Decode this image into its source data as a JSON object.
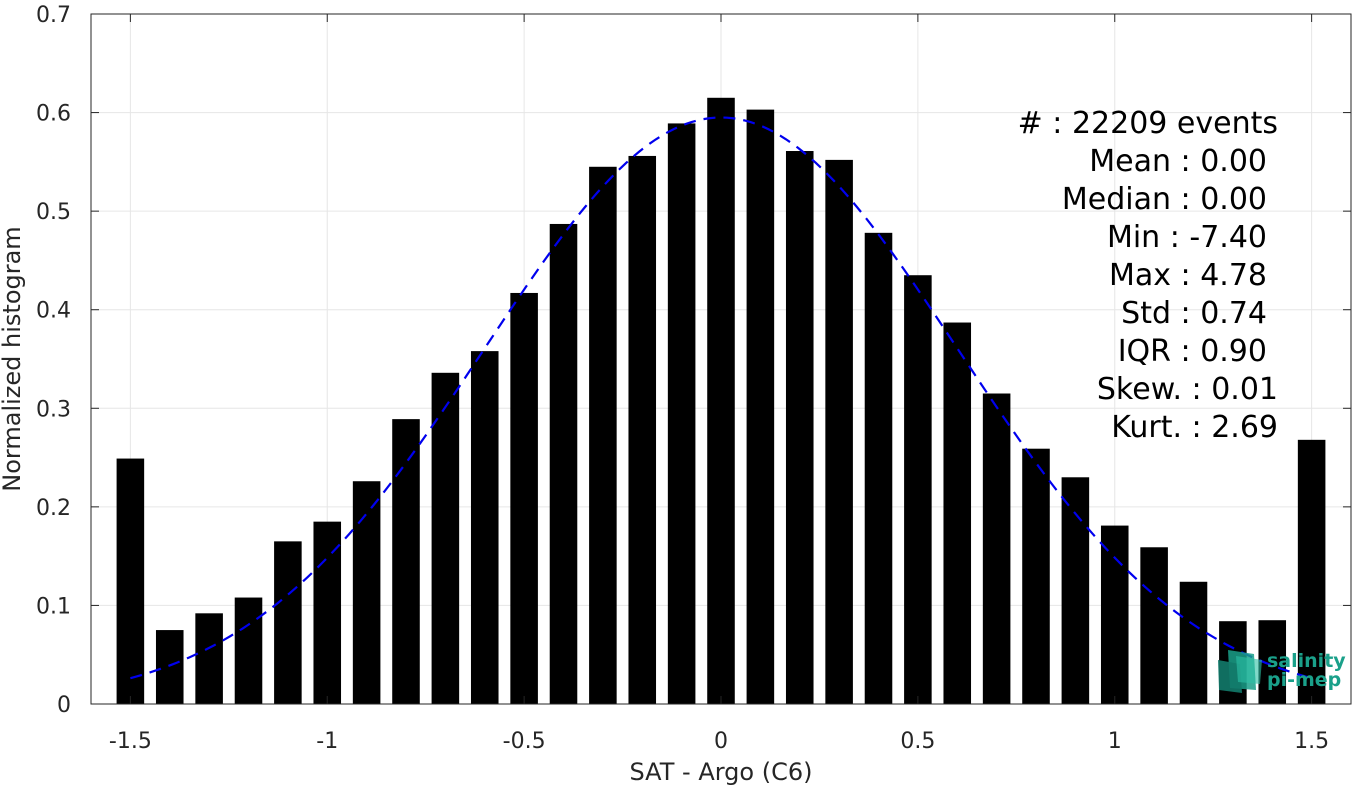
{
  "chart_data": {
    "type": "bar",
    "xlabel": "SAT - Argo (C6)",
    "ylabel": "Normalized histogram",
    "xlim": [
      -1.6,
      1.6
    ],
    "ylim": [
      0,
      0.7
    ],
    "xticks": [
      -1.5,
      -1,
      -0.5,
      0,
      0.5,
      1,
      1.5
    ],
    "xtick_labels": [
      "-1.5",
      "-1",
      "-0.5",
      "0",
      "0.5",
      "1",
      "1.5"
    ],
    "yticks": [
      0,
      0.1,
      0.2,
      0.3,
      0.4,
      0.5,
      0.6,
      0.7
    ],
    "ytick_labels": [
      "0",
      "0.1",
      "0.2",
      "0.3",
      "0.4",
      "0.5",
      "0.6",
      "0.7"
    ],
    "grid": true,
    "bar_color": "#000000",
    "curve_color": "#0000ee",
    "bin_width": 0.1,
    "bar_width_fraction": 0.7,
    "x": [
      -1.5,
      -1.4,
      -1.3,
      -1.2,
      -1.1,
      -1.0,
      -0.9,
      -0.8,
      -0.7,
      -0.6,
      -0.5,
      -0.4,
      -0.3,
      -0.2,
      -0.1,
      0.0,
      0.1,
      0.2,
      0.3,
      0.4,
      0.5,
      0.6,
      0.7,
      0.8,
      0.9,
      1.0,
      1.1,
      1.2,
      1.3,
      1.4,
      1.5
    ],
    "values": [
      0.249,
      0.075,
      0.092,
      0.108,
      0.165,
      0.185,
      0.226,
      0.289,
      0.336,
      0.358,
      0.417,
      0.487,
      0.545,
      0.556,
      0.589,
      0.615,
      0.603,
      0.561,
      0.552,
      0.478,
      0.435,
      0.387,
      0.315,
      0.259,
      0.23,
      0.181,
      0.159,
      0.124,
      0.084,
      0.085,
      0.268
    ],
    "fit_curve": {
      "style": "dashed",
      "mean": 0.0,
      "peak": 0.595,
      "std": 0.6,
      "x_range": [
        -1.5,
        1.5
      ]
    },
    "stats_lines": [
      "#  : 22209 events",
      "Mean : 0.00",
      "Median : 0.00",
      "Min : -7.40",
      "Max : 4.78",
      "Std : 0.74",
      "IQR : 0.90",
      "Skew. : 0.01",
      "Kurt. : 2.69"
    ]
  },
  "logo": {
    "line1": "salinity",
    "line2": "pi-mep",
    "color": "#1aa08a"
  }
}
